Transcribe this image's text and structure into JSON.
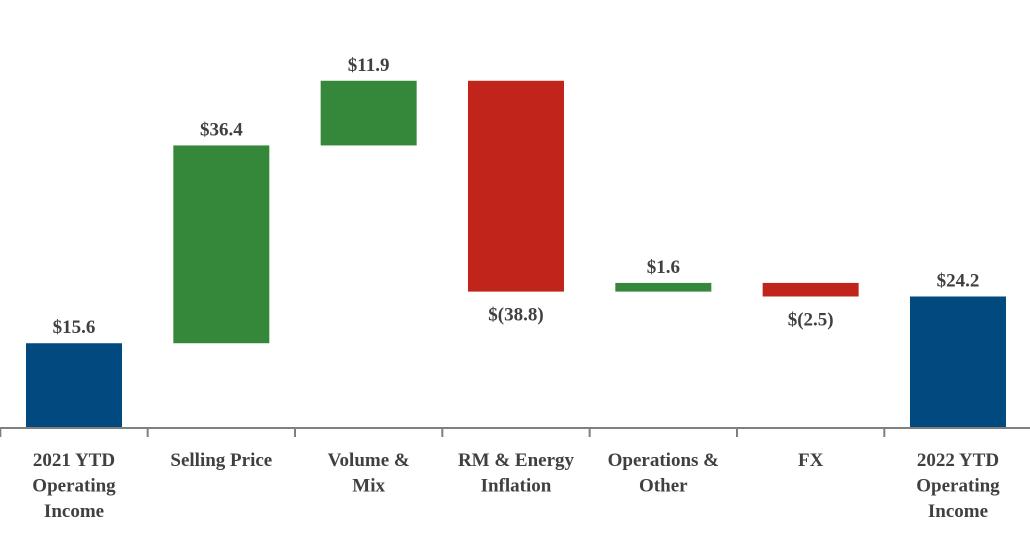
{
  "chart_data": {
    "type": "waterfall",
    "title": "",
    "xlabel": "",
    "ylabel": "",
    "ylim": [
      0,
      63
    ],
    "grid": false,
    "legend": "none",
    "categories": [
      [
        "2021 YTD",
        "Operating",
        "Income"
      ],
      [
        "Selling Price"
      ],
      [
        "Volume &",
        "Mix"
      ],
      [
        "RM & Energy",
        "Inflation"
      ],
      [
        "Operations &",
        "Other"
      ],
      [
        "FX"
      ],
      [
        "2022 YTD",
        "Operating",
        "Income"
      ]
    ],
    "values": [
      15.6,
      36.4,
      11.9,
      -38.8,
      1.6,
      -2.5,
      24.2
    ],
    "kinds": [
      "total",
      "delta",
      "delta",
      "delta",
      "delta",
      "delta",
      "total"
    ],
    "labels": [
      "$15.6",
      "$36.4",
      "$11.9",
      "$(38.8)",
      "$1.6",
      "$(2.5)",
      "$24.2"
    ],
    "colors": {
      "total": "#004a80",
      "increase": "#35883a",
      "decrease": "#c0241a",
      "axis": "#808080",
      "text": "#404040"
    }
  }
}
